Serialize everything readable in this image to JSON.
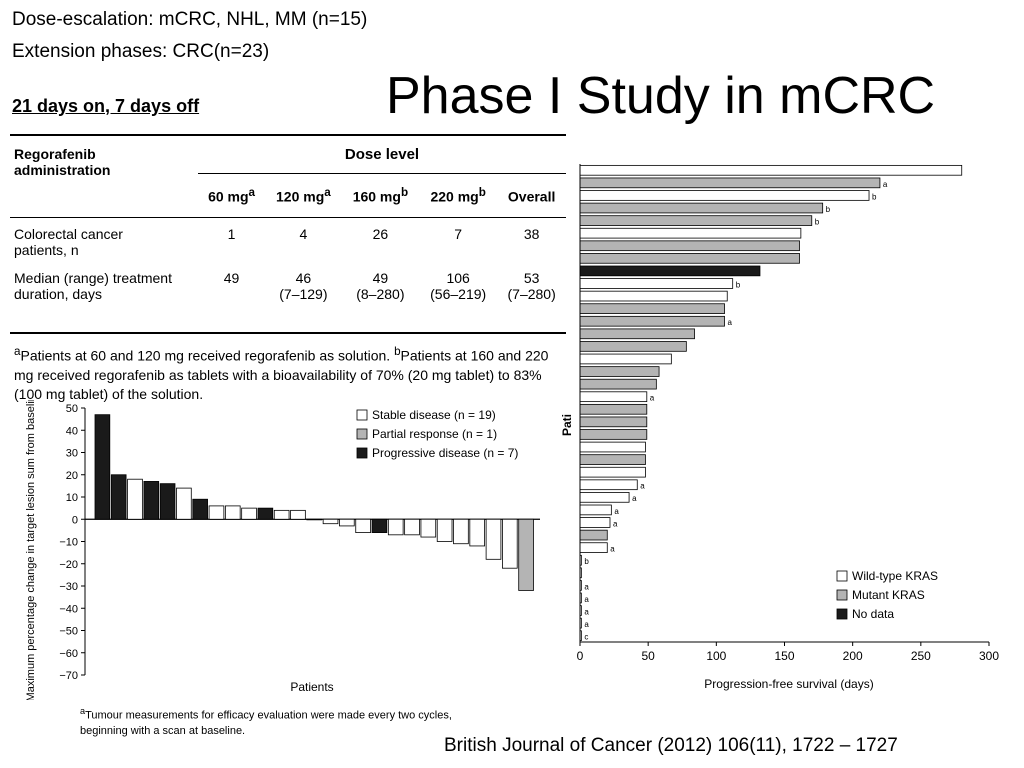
{
  "header": {
    "line1": "Dose-escalation: mCRC, NHL, MM (n=15)",
    "line2": "Extension phases: CRC(n=23)",
    "schedule": "21 days on, 7 days off",
    "title": "Phase I Study in mCRC"
  },
  "table": {
    "row_header": "Regorafenib administration",
    "group_header": "Dose level",
    "columns": [
      {
        "dose": "60 mg",
        "sup": "a"
      },
      {
        "dose": "120 mg",
        "sup": "a"
      },
      {
        "dose": "160 mg",
        "sup": "b"
      },
      {
        "dose": "220 mg",
        "sup": "b"
      },
      {
        "dose": "Overall",
        "sup": ""
      }
    ],
    "rows": [
      {
        "label_1": "Colorectal cancer",
        "label_2": "patients, n",
        "values": [
          "1",
          "4",
          "26",
          "7",
          "38"
        ],
        "ranges": [
          "",
          "",
          "",
          "",
          ""
        ]
      },
      {
        "label_1": "Median (range) treatment",
        "label_2": "duration, days",
        "values": [
          "49",
          "46",
          "49",
          "106",
          "53"
        ],
        "ranges": [
          "",
          "(7–129)",
          "(8–280)",
          "(56–219)",
          "(7–280)"
        ]
      }
    ],
    "footnote_a_mark": "a",
    "footnote_a": "Patients at 60 and 120 mg received regorafenib as solution.",
    "footnote_b_mark": "b",
    "footnote_b": "Patients at 160 and 220 mg received regorafenib as tablets with a bioavailability of 70% (20 mg tablet) to 83% (100 mg tablet) of the solution."
  },
  "waterfall_footnote": {
    "mark": "a",
    "line1": "Tumour measurements for efficacy evaluation were made every two cycles,",
    "line2": "beginning with a scan at baseline."
  },
  "citation": "British Journal of Cancer (2012) 106(11), 1722 – 1727",
  "colors": {
    "white_fill": "#ffffff",
    "grey_fill": "#b4b4b4",
    "black_fill": "#1a1a1a"
  },
  "chart_data": [
    {
      "type": "bar",
      "ylabel": "Maximum percentage change in target lesion sum from baseline",
      "ylabel_sup": "a",
      "xlabel": "Patients",
      "ylim": [
        -70,
        50
      ],
      "yticks": [
        50,
        40,
        30,
        20,
        10,
        0,
        -10,
        -20,
        -30,
        -40,
        -50,
        -60,
        -70
      ],
      "legend_position": "top-right",
      "legend": [
        {
          "label": "Stable disease (n = 19)",
          "fill": "white"
        },
        {
          "label": "Partial response (n = 1)",
          "fill": "grey"
        },
        {
          "label": "Progressive disease (n = 7)",
          "fill": "black"
        }
      ],
      "bars": [
        {
          "value": 47,
          "fill": "black"
        },
        {
          "value": 20,
          "fill": "black"
        },
        {
          "value": 18,
          "fill": "white"
        },
        {
          "value": 17,
          "fill": "black"
        },
        {
          "value": 16,
          "fill": "black"
        },
        {
          "value": 14,
          "fill": "white"
        },
        {
          "value": 9,
          "fill": "black"
        },
        {
          "value": 6,
          "fill": "white"
        },
        {
          "value": 6,
          "fill": "white"
        },
        {
          "value": 5,
          "fill": "white"
        },
        {
          "value": 5,
          "fill": "black"
        },
        {
          "value": 4,
          "fill": "white"
        },
        {
          "value": 4,
          "fill": "white"
        },
        {
          "value": 0,
          "fill": "white"
        },
        {
          "value": -2,
          "fill": "white"
        },
        {
          "value": -3,
          "fill": "white"
        },
        {
          "value": -6,
          "fill": "white"
        },
        {
          "value": -6,
          "fill": "black"
        },
        {
          "value": -7,
          "fill": "white"
        },
        {
          "value": -7,
          "fill": "white"
        },
        {
          "value": -8,
          "fill": "white"
        },
        {
          "value": -10,
          "fill": "white"
        },
        {
          "value": -11,
          "fill": "white"
        },
        {
          "value": -12,
          "fill": "white"
        },
        {
          "value": -18,
          "fill": "white"
        },
        {
          "value": -22,
          "fill": "white"
        },
        {
          "value": -32,
          "fill": "grey"
        }
      ]
    },
    {
      "type": "bar",
      "orientation": "horizontal",
      "xlabel": "Progression-free survival (days)",
      "ylabel": "Pati",
      "xlim": [
        0,
        300
      ],
      "xticks": [
        0,
        50,
        100,
        150,
        200,
        250,
        300
      ],
      "legend_position": "bottom-right",
      "legend": [
        {
          "label": "Wild-type KRAS",
          "fill": "white"
        },
        {
          "label": "Mutant KRAS",
          "fill": "grey"
        },
        {
          "label": "No data",
          "fill": "black"
        }
      ],
      "bars": [
        {
          "value": 280,
          "fill": "white",
          "note": ""
        },
        {
          "value": 220,
          "fill": "grey",
          "note": "a"
        },
        {
          "value": 212,
          "fill": "white",
          "note": "b"
        },
        {
          "value": 178,
          "fill": "grey",
          "note": "b"
        },
        {
          "value": 170,
          "fill": "grey",
          "note": "b"
        },
        {
          "value": 162,
          "fill": "white",
          "note": ""
        },
        {
          "value": 161,
          "fill": "grey",
          "note": ""
        },
        {
          "value": 161,
          "fill": "grey",
          "note": ""
        },
        {
          "value": 132,
          "fill": "black",
          "note": ""
        },
        {
          "value": 112,
          "fill": "white",
          "note": "b"
        },
        {
          "value": 108,
          "fill": "white",
          "note": ""
        },
        {
          "value": 106,
          "fill": "grey",
          "note": ""
        },
        {
          "value": 106,
          "fill": "grey",
          "note": "a"
        },
        {
          "value": 84,
          "fill": "grey",
          "note": ""
        },
        {
          "value": 78,
          "fill": "grey",
          "note": ""
        },
        {
          "value": 67,
          "fill": "white",
          "note": ""
        },
        {
          "value": 58,
          "fill": "grey",
          "note": ""
        },
        {
          "value": 56,
          "fill": "grey",
          "note": ""
        },
        {
          "value": 49,
          "fill": "white",
          "note": "a"
        },
        {
          "value": 49,
          "fill": "grey",
          "note": ""
        },
        {
          "value": 49,
          "fill": "grey",
          "note": ""
        },
        {
          "value": 49,
          "fill": "grey",
          "note": ""
        },
        {
          "value": 48,
          "fill": "white",
          "note": ""
        },
        {
          "value": 48,
          "fill": "grey",
          "note": ""
        },
        {
          "value": 48,
          "fill": "white",
          "note": ""
        },
        {
          "value": 42,
          "fill": "white",
          "note": "a"
        },
        {
          "value": 36,
          "fill": "white",
          "note": "a"
        },
        {
          "value": 23,
          "fill": "white",
          "note": "a"
        },
        {
          "value": 22,
          "fill": "white",
          "note": "a"
        },
        {
          "value": 20,
          "fill": "grey",
          "note": ""
        },
        {
          "value": 20,
          "fill": "white",
          "note": "a"
        },
        {
          "value": 1,
          "fill": "white",
          "note": "b"
        },
        {
          "value": 1,
          "fill": "white",
          "note": ""
        },
        {
          "value": 1,
          "fill": "white",
          "note": "a"
        },
        {
          "value": 1,
          "fill": "white",
          "note": "a"
        },
        {
          "value": 1,
          "fill": "white",
          "note": "a"
        },
        {
          "value": 1,
          "fill": "white",
          "note": "a"
        },
        {
          "value": 1,
          "fill": "white",
          "note": "c"
        }
      ]
    }
  ]
}
